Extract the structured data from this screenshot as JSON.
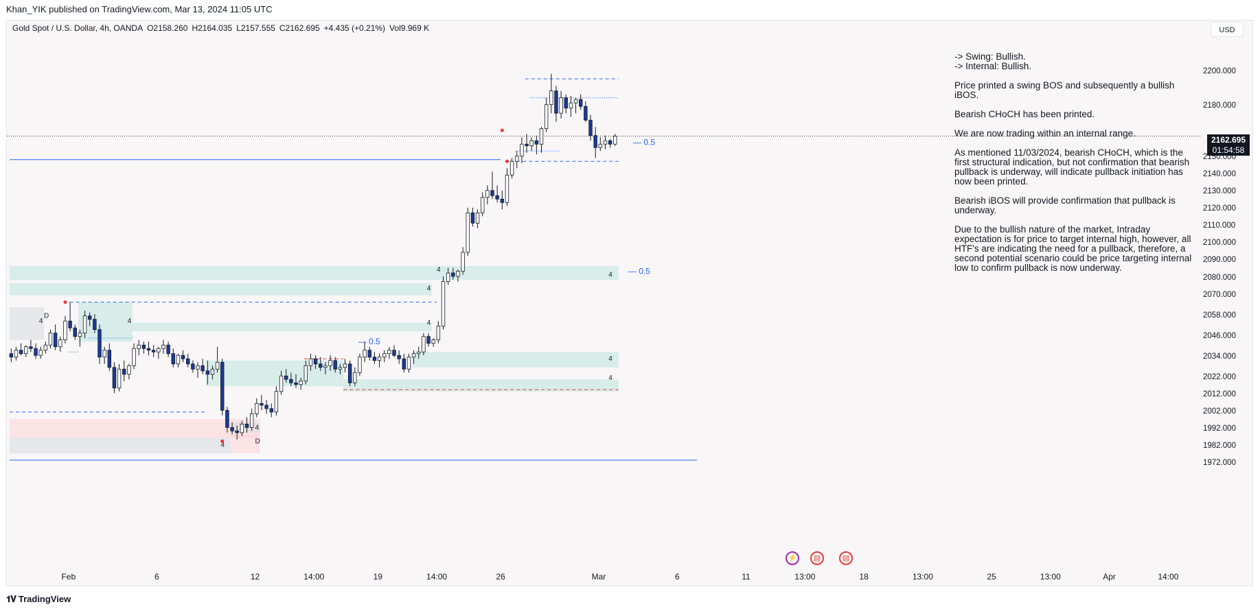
{
  "header": {
    "published_by": "Khan_YIK published on TradingView.com, Mar 13, 2024 11:05 UTC"
  },
  "symbol_bar": {
    "symbol": "Gold Spot / U.S. Dollar, 4h, OANDA",
    "open": "O2158.260",
    "high": "H2164.035",
    "low": "L2157.555",
    "close": "C2162.695",
    "change": "+4.435 (+0.21%)",
    "volume": "Vol9.969 K"
  },
  "currency_button": "USD",
  "price_label": {
    "price": "2162.695",
    "countdown": "01:54:58"
  },
  "brand": {
    "logo_icon": "tradingview-logo-icon",
    "name": "TradingView"
  },
  "note": {
    "swing": "-> Swing:  Bullish.",
    "internal": "-> Internal:  Bullish.",
    "p1": "Price printed a swing BOS and subsequently a bullish iBOS.",
    "p2": "Bearish CHoCH has been printed.",
    "p3": "We are now trading within an internal range.",
    "p4": "As mentioned 11/03/2024, bearish CHoCH, which is the first structural indication, but not confirmation that bearish pullback is underway, will indicate pullback initiation has now been printed.",
    "p5": "Bearish iBOS will provide confirmation that pullback is underway.",
    "p6": "Due to the bullish nature of the market, Intraday expectation is for price to target internal high, however, all HTF's  are indicating the need for a pullback, therefore, a second potential scenario could be price targeting internal low to confirm pullback is now underway."
  },
  "events": [
    {
      "icon": "lightning-icon",
      "color": "#9c27b0"
    },
    {
      "icon": "us-flag-icon",
      "color": "#e53935"
    },
    {
      "icon": "us-flag-icon",
      "color": "#e53935"
    }
  ],
  "chart_data": {
    "type": "candlestick",
    "timeframe": "4h",
    "y_axis": {
      "ticks": [
        2200.0,
        2180.0,
        2150.0,
        2140.0,
        2130.0,
        2120.0,
        2110.0,
        2100.0,
        2090.0,
        2080.0,
        2070.0,
        2058.0,
        2046.0,
        2034.0,
        2022.0,
        2012.0,
        2002.0,
        1992.0,
        1982.0,
        1972.0
      ],
      "tick_labels": [
        "2200.000",
        "2180.000",
        "2150.000",
        "2140.000",
        "2130.000",
        "2120.000",
        "2110.000",
        "2100.000",
        "2090.000",
        "2080.000",
        "2070.000",
        "2058.000",
        "2046.000",
        "2034.000",
        "2022.000",
        "2012.000",
        "2002.000",
        "1992.000",
        "1982.000",
        "1972.000"
      ],
      "range": [
        1968,
        2206
      ]
    },
    "x_axis": {
      "tick_labels": [
        "Feb",
        "6",
        "12",
        "14:00",
        "19",
        "14:00",
        "26",
        "Mar",
        "6",
        "11",
        "13:00",
        "18",
        "13:00",
        "25",
        "13:00",
        "Apr",
        "14:00"
      ],
      "tick_index": [
        12,
        30,
        50,
        62,
        75,
        87,
        100,
        120,
        136,
        150,
        162,
        174,
        186,
        200,
        212,
        224,
        236
      ]
    },
    "candles": [
      [
        2036,
        2039,
        2031,
        2034
      ],
      [
        2034,
        2040,
        2032,
        2038
      ],
      [
        2038,
        2042,
        2035,
        2036
      ],
      [
        2036,
        2041,
        2034,
        2040
      ],
      [
        2040,
        2044,
        2037,
        2039
      ],
      [
        2039,
        2042,
        2033,
        2035
      ],
      [
        2035,
        2040,
        2033,
        2038
      ],
      [
        2038,
        2043,
        2036,
        2041
      ],
      [
        2041,
        2050,
        2039,
        2048
      ],
      [
        2048,
        2053,
        2038,
        2040
      ],
      [
        2040,
        2046,
        2037,
        2044
      ],
      [
        2044,
        2058,
        2042,
        2055
      ],
      [
        2055,
        2066,
        2049,
        2051
      ],
      [
        2051,
        2053,
        2044,
        2046
      ],
      [
        2046,
        2050,
        2040,
        2048
      ],
      [
        2048,
        2061,
        2045,
        2058
      ],
      [
        2058,
        2060,
        2052,
        2056
      ],
      [
        2056,
        2059,
        2048,
        2050
      ],
      [
        2050,
        2053,
        2030,
        2034
      ],
      [
        2034,
        2040,
        2030,
        2038
      ],
      [
        2038,
        2042,
        2026,
        2028
      ],
      [
        2028,
        2031,
        2013,
        2016
      ],
      [
        2016,
        2030,
        2014,
        2027
      ],
      [
        2027,
        2032,
        2020,
        2024
      ],
      [
        2024,
        2030,
        2021,
        2029
      ],
      [
        2029,
        2042,
        2027,
        2039
      ],
      [
        2039,
        2044,
        2035,
        2041
      ],
      [
        2041,
        2043,
        2036,
        2039
      ],
      [
        2039,
        2043,
        2035,
        2038
      ],
      [
        2038,
        2041,
        2034,
        2037
      ],
      [
        2037,
        2040,
        2033,
        2039
      ],
      [
        2039,
        2044,
        2036,
        2041
      ],
      [
        2041,
        2043,
        2034,
        2036
      ],
      [
        2036,
        2039,
        2028,
        2030
      ],
      [
        2030,
        2036,
        2028,
        2035
      ],
      [
        2035,
        2038,
        2031,
        2033
      ],
      [
        2033,
        2036,
        2028,
        2030
      ],
      [
        2030,
        2032,
        2025,
        2027
      ],
      [
        2027,
        2031,
        2022,
        2029
      ],
      [
        2029,
        2033,
        2024,
        2026
      ],
      [
        2026,
        2032,
        2018,
        2024
      ],
      [
        2024,
        2029,
        2021,
        2027
      ],
      [
        2027,
        2040,
        2025,
        2031
      ],
      [
        2031,
        2033,
        2000,
        2003
      ],
      [
        2003,
        2005,
        1990,
        1993
      ],
      [
        1993,
        1996,
        1989,
        1991
      ],
      [
        1991,
        1994,
        1986,
        1990
      ],
      [
        1990,
        1997,
        1988,
        1995
      ],
      [
        1995,
        1999,
        1990,
        1993
      ],
      [
        1993,
        2004,
        1991,
        2001
      ],
      [
        2001,
        2010,
        1999,
        2007
      ],
      [
        2007,
        2012,
        2003,
        2006
      ],
      [
        2006,
        2009,
        2001,
        2004
      ],
      [
        2004,
        2007,
        1999,
        2002
      ],
      [
        2002,
        2017,
        2000,
        2014
      ],
      [
        2014,
        2026,
        2012,
        2023
      ],
      [
        2023,
        2027,
        2019,
        2021
      ],
      [
        2021,
        2025,
        2017,
        2019
      ],
      [
        2019,
        2024,
        2016,
        2018
      ],
      [
        2018,
        2022,
        2015,
        2020
      ],
      [
        2020,
        2032,
        2018,
        2029
      ],
      [
        2029,
        2036,
        2026,
        2033
      ],
      [
        2033,
        2035,
        2027,
        2030
      ],
      [
        2030,
        2034,
        2026,
        2028
      ],
      [
        2028,
        2031,
        2024,
        2029
      ],
      [
        2029,
        2035,
        2026,
        2032
      ],
      [
        2032,
        2034,
        2025,
        2027
      ],
      [
        2027,
        2030,
        2024,
        2028
      ],
      [
        2028,
        2033,
        2025,
        2030
      ],
      [
        2030,
        2032,
        2017,
        2019
      ],
      [
        2019,
        2028,
        2017,
        2025
      ],
      [
        2025,
        2036,
        2023,
        2034
      ],
      [
        2034,
        2043,
        2031,
        2038
      ],
      [
        2038,
        2040,
        2032,
        2034
      ],
      [
        2034,
        2037,
        2030,
        2032
      ],
      [
        2032,
        2036,
        2028,
        2034
      ],
      [
        2034,
        2038,
        2031,
        2036
      ],
      [
        2036,
        2040,
        2033,
        2038
      ],
      [
        2038,
        2041,
        2034,
        2035
      ],
      [
        2035,
        2038,
        2030,
        2033
      ],
      [
        2033,
        2036,
        2025,
        2027
      ],
      [
        2027,
        2036,
        2025,
        2034
      ],
      [
        2034,
        2038,
        2030,
        2036
      ],
      [
        2036,
        2040,
        2033,
        2037
      ],
      [
        2037,
        2048,
        2035,
        2046
      ],
      [
        2046,
        2048,
        2040,
        2042
      ],
      [
        2042,
        2045,
        2040,
        2044
      ],
      [
        2044,
        2055,
        2042,
        2052
      ],
      [
        2052,
        2081,
        2050,
        2078
      ],
      [
        2078,
        2086,
        2076,
        2083
      ],
      [
        2083,
        2086,
        2079,
        2081
      ],
      [
        2081,
        2085,
        2078,
        2084
      ],
      [
        2084,
        2098,
        2082,
        2095
      ],
      [
        2095,
        2121,
        2093,
        2118
      ],
      [
        2118,
        2121,
        2110,
        2112
      ],
      [
        2112,
        2120,
        2109,
        2118
      ],
      [
        2118,
        2130,
        2116,
        2127
      ],
      [
        2127,
        2134,
        2123,
        2131
      ],
      [
        2131,
        2142,
        2126,
        2128
      ],
      [
        2128,
        2134,
        2124,
        2126
      ],
      [
        2126,
        2131,
        2120,
        2124
      ],
      [
        2124,
        2144,
        2122,
        2140
      ],
      [
        2140,
        2150,
        2138,
        2148
      ],
      [
        2148,
        2154,
        2144,
        2151
      ],
      [
        2151,
        2162,
        2147,
        2158
      ],
      [
        2158,
        2164,
        2153,
        2157
      ],
      [
        2157,
        2162,
        2154,
        2160
      ],
      [
        2160,
        2163,
        2152,
        2158
      ],
      [
        2158,
        2168,
        2153,
        2167
      ],
      [
        2167,
        2185,
        2165,
        2181
      ],
      [
        2181,
        2199,
        2176,
        2189
      ],
      [
        2189,
        2192,
        2171,
        2176
      ],
      [
        2176,
        2189,
        2173,
        2185
      ],
      [
        2185,
        2187,
        2176,
        2179
      ],
      [
        2179,
        2186,
        2174,
        2182
      ],
      [
        2182,
        2185,
        2176,
        2184
      ],
      [
        2184,
        2187,
        2178,
        2180
      ],
      [
        2180,
        2183,
        2171,
        2172
      ],
      [
        2172,
        2175,
        2160,
        2163
      ],
      [
        2163,
        2168,
        2150,
        2156
      ],
      [
        2156,
        2162,
        2154,
        2158
      ],
      [
        2158,
        2163,
        2155,
        2160
      ],
      [
        2160,
        2161,
        2156,
        2158
      ],
      [
        2158,
        2164,
        2157,
        2162.695
      ]
    ],
    "zones": [
      {
        "type": "demand",
        "from_idx": 0,
        "to_idx": 124,
        "low": 2079,
        "high": 2087
      },
      {
        "type": "demand",
        "from_idx": 0,
        "to_idx": 86,
        "low": 2070,
        "high": 2077
      },
      {
        "type": "demand",
        "from_idx": 14,
        "to_idx": 25,
        "low": 2043,
        "high": 2066
      },
      {
        "type": "demand",
        "from_idx": 25,
        "to_idx": 86,
        "low": 2049,
        "high": 2054
      },
      {
        "type": "demand",
        "from_idx": 40,
        "to_idx": 68,
        "low": 2017,
        "high": 2032
      },
      {
        "type": "demand",
        "from_idx": 82,
        "to_idx": 124,
        "low": 2028,
        "high": 2037
      },
      {
        "type": "demand",
        "from_idx": 68,
        "to_idx": 124,
        "low": 2014,
        "high": 2021
      },
      {
        "type": "neutral",
        "from_idx": 0,
        "to_idx": 7,
        "low": 2044,
        "high": 2063
      },
      {
        "type": "supply",
        "from_idx": 0,
        "to_idx": 51,
        "low": 1987,
        "high": 1998
      },
      {
        "type": "neutral",
        "from_idx": 0,
        "to_idx": 45,
        "low": 1978,
        "high": 1987
      },
      {
        "type": "supply",
        "from_idx": 45,
        "to_idx": 51,
        "low": 1978,
        "high": 1989
      },
      {
        "type": "neutral",
        "from_idx": 45,
        "to_idx": 51,
        "low": 1990,
        "high": 1996
      }
    ],
    "levels": [
      {
        "price": 2196,
        "from_idx": 105,
        "to_idx": 124,
        "style": "dashed",
        "color": "#2962ff"
      },
      {
        "price": 2185,
        "from_idx": 106,
        "to_idx": 124,
        "style": "dotted",
        "color": "#2962ff"
      },
      {
        "price": 2149,
        "from_idx": 0,
        "to_idx": 100,
        "style": "solid",
        "color": "#2962ff"
      },
      {
        "price": 2148,
        "from_idx": 102,
        "to_idx": 124,
        "style": "dashed",
        "color": "#2962ff"
      },
      {
        "price": 2154,
        "from_idx": 103,
        "to_idx": 112,
        "style": "dotted",
        "color": "#2962ff"
      },
      {
        "price": 2066,
        "from_idx": 11,
        "to_idx": 87,
        "style": "dashed",
        "color": "#2962ff"
      },
      {
        "price": 2045,
        "from_idx": 16,
        "to_idx": 25,
        "style": "dotted",
        "color": "#2962ff"
      },
      {
        "price": 2002,
        "from_idx": 0,
        "to_idx": 40,
        "style": "dashed",
        "color": "#2962ff"
      },
      {
        "price": 2037,
        "from_idx": 12,
        "to_idx": 14,
        "style": "dotted",
        "color": "#2962ff"
      },
      {
        "price": 2015,
        "from_idx": 68,
        "to_idx": 124,
        "style": "dashed",
        "color": "#e53935"
      },
      {
        "price": 2033,
        "from_idx": 60,
        "to_idx": 68,
        "style": "dashed",
        "color": "#e53935"
      },
      {
        "price": 1974,
        "from_idx": 0,
        "to_idx": 140,
        "style": "solid",
        "color": "#2962ff"
      }
    ],
    "current_price": 2162.695,
    "equilibrium_labels": [
      {
        "text": "— 0.5",
        "price": 2159,
        "at_idx": 127
      },
      {
        "text": "— 0.5",
        "price": 2084,
        "at_idx": 126
      },
      {
        "text": "— 0.5",
        "price": 2043,
        "at_idx": 71
      }
    ],
    "zone_labels": [
      {
        "text": "4",
        "price": 2082,
        "at_idx": 122
      },
      {
        "text": "4",
        "price": 2033,
        "at_idx": 122
      },
      {
        "text": "4",
        "price": 2022,
        "at_idx": 122
      },
      {
        "text": "4",
        "price": 2055,
        "at_idx": 6
      },
      {
        "text": "D",
        "price": 2058,
        "at_idx": 7
      },
      {
        "text": "4",
        "price": 2055,
        "at_idx": 24
      },
      {
        "text": "4",
        "price": 1993,
        "at_idx": 50
      },
      {
        "text": "D",
        "price": 1985,
        "at_idx": 50
      },
      {
        "text": "4",
        "price": 1983,
        "at_idx": 43
      },
      {
        "text": "4",
        "price": 2074,
        "at_idx": 85
      },
      {
        "text": "4",
        "price": 2054,
        "at_idx": 85
      },
      {
        "text": "4",
        "price": 2085,
        "at_idx": 87
      }
    ],
    "swing_points": [
      {
        "price": 2066,
        "at_idx": 11,
        "color": "#e53935"
      },
      {
        "price": 1985,
        "at_idx": 43,
        "color": "#e53935"
      },
      {
        "price": 2166,
        "at_idx": 100,
        "color": "#e53935"
      },
      {
        "price": 2148,
        "at_idx": 101,
        "color": "#e53935"
      }
    ]
  }
}
